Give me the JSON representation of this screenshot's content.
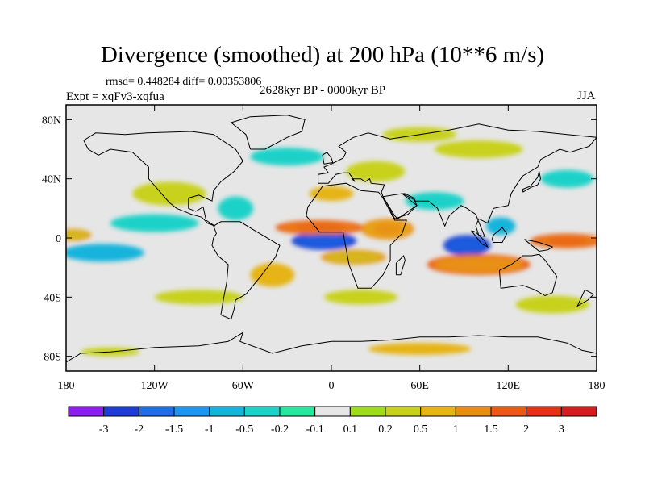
{
  "chart_data": {
    "type": "heatmap",
    "title": "Divergence (smoothed) at 200 hPa (10**6 m/s)",
    "stats": "rmsd= 0.448284 diff= 0.00353806",
    "experiment": "Expt = xqFv3-xqfua",
    "period": "2628kyr BP - 0000kyr BP",
    "season": "JJA",
    "xlim": [
      -180,
      180
    ],
    "ylim": [
      -90,
      90
    ],
    "x_ticks": [
      {
        "value": -180,
        "label": "180"
      },
      {
        "value": -120,
        "label": "120W"
      },
      {
        "value": -60,
        "label": "60W"
      },
      {
        "value": 0,
        "label": "0"
      },
      {
        "value": 60,
        "label": "60E"
      },
      {
        "value": 120,
        "label": "120E"
      },
      {
        "value": 180,
        "label": "180"
      }
    ],
    "y_ticks": [
      {
        "value": 80,
        "label": "80N"
      },
      {
        "value": 40,
        "label": "40N"
      },
      {
        "value": 0,
        "label": "0"
      },
      {
        "value": -40,
        "label": "40S"
      },
      {
        "value": -80,
        "label": "80S"
      }
    ],
    "colorbar": {
      "labels": [
        "-3",
        "-2",
        "-1.5",
        "-1",
        "-0.5",
        "-0.2",
        "-0.1",
        "0.1",
        "0.2",
        "0.5",
        "1",
        "1.5",
        "2",
        "3"
      ],
      "colors": [
        "#8c1eef",
        "#1e3cd2",
        "#1e6ee6",
        "#1e96f0",
        "#14b4dc",
        "#1ed2c8",
        "#28e6a0",
        "#e6e6e6",
        "#a0dc1e",
        "#c8d21e",
        "#e6b414",
        "#eb8c14",
        "#eb5a14",
        "#e63214",
        "#d21e1e"
      ]
    },
    "anomalies": [
      {
        "lon": -5,
        "lat": -2,
        "rlon": 22,
        "rlat": 6,
        "value": -2.2
      },
      {
        "lon": 92,
        "lat": -5,
        "rlon": 16,
        "rlat": 7,
        "value": -2.3
      },
      {
        "lon": -8,
        "lat": 7,
        "rlon": 30,
        "rlat": 5,
        "value": 1.6
      },
      {
        "lon": 38,
        "lat": 6,
        "rlon": 18,
        "rlat": 7,
        "value": 1.2
      },
      {
        "lon": 15,
        "lat": -13,
        "rlon": 22,
        "rlat": 5,
        "value": 1.0
      },
      {
        "lon": 100,
        "lat": -18,
        "rlon": 35,
        "rlat": 7,
        "value": 1.5
      },
      {
        "lon": 160,
        "lat": -2,
        "rlon": 25,
        "rlat": 5,
        "value": 1.8
      },
      {
        "lon": -175,
        "lat": 2,
        "rlon": 12,
        "rlat": 4,
        "value": 1.0
      },
      {
        "lon": -155,
        "lat": -10,
        "rlon": 28,
        "rlat": 6,
        "value": -0.7
      },
      {
        "lon": -120,
        "lat": 10,
        "rlon": 30,
        "rlat": 6,
        "value": -0.4
      },
      {
        "lon": -110,
        "lat": 30,
        "rlon": 25,
        "rlat": 8,
        "value": 0.35
      },
      {
        "lon": -65,
        "lat": 20,
        "rlon": 12,
        "rlat": 8,
        "value": -0.5
      },
      {
        "lon": 115,
        "lat": 8,
        "rlon": 10,
        "rlat": 6,
        "value": -0.8
      },
      {
        "lon": 70,
        "lat": 25,
        "rlon": 20,
        "rlat": 6,
        "value": -0.3
      },
      {
        "lon": 30,
        "lat": 45,
        "rlon": 20,
        "rlat": 7,
        "value": 0.35
      },
      {
        "lon": -30,
        "lat": 55,
        "rlon": 25,
        "rlat": 6,
        "value": -0.4
      },
      {
        "lon": 100,
        "lat": 60,
        "rlon": 30,
        "rlat": 6,
        "value": 0.3
      },
      {
        "lon": 60,
        "lat": 70,
        "rlon": 25,
        "rlat": 5,
        "value": 0.4
      },
      {
        "lon": -90,
        "lat": -40,
        "rlon": 30,
        "rlat": 5,
        "value": 0.4
      },
      {
        "lon": 20,
        "lat": -40,
        "rlon": 25,
        "rlat": 5,
        "value": 0.35
      },
      {
        "lon": 150,
        "lat": -45,
        "rlon": 25,
        "rlat": 6,
        "value": 0.4
      },
      {
        "lon": 60,
        "lat": -75,
        "rlon": 35,
        "rlat": 4,
        "value": 0.5
      },
      {
        "lon": -150,
        "lat": -77,
        "rlon": 20,
        "rlat": 3,
        "value": 0.3
      },
      {
        "lon": 160,
        "lat": 40,
        "rlon": 18,
        "rlat": 6,
        "value": -0.3
      },
      {
        "lon": 0,
        "lat": 30,
        "rlon": 15,
        "rlat": 5,
        "value": 0.6
      },
      {
        "lon": -40,
        "lat": -25,
        "rlon": 15,
        "rlat": 8,
        "value": 0.5
      }
    ]
  }
}
